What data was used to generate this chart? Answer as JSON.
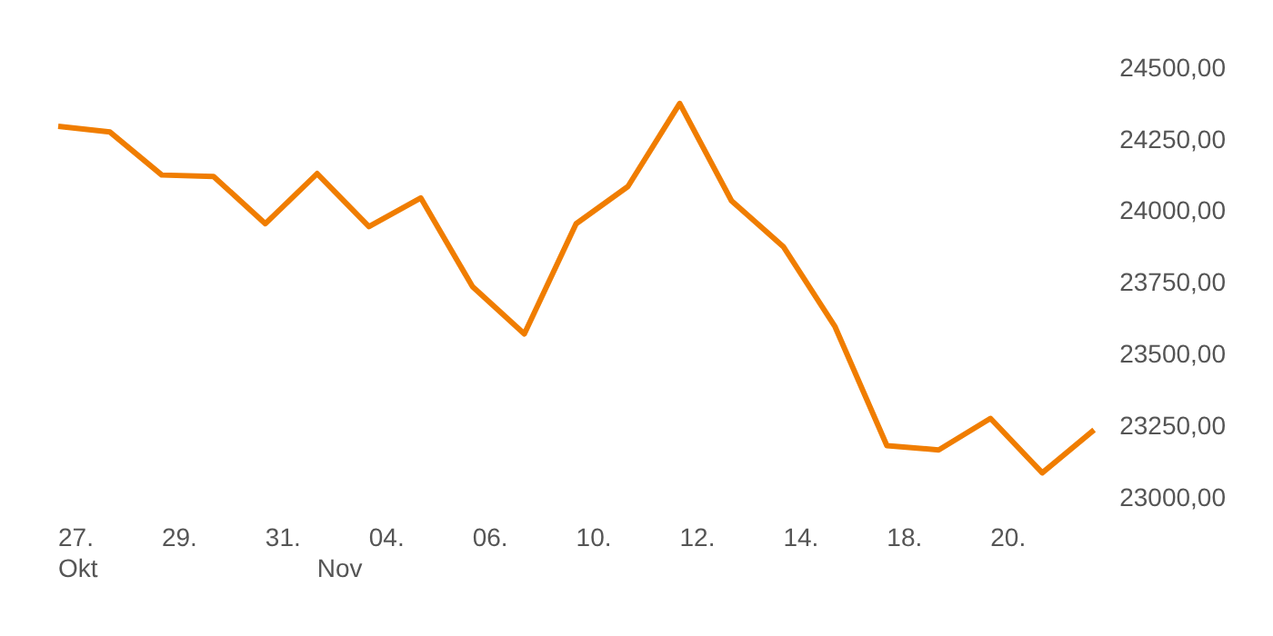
{
  "chart_data": {
    "type": "line",
    "categories": [
      "27.\nOkt",
      null,
      "29.",
      null,
      "31.",
      "\nNov",
      "04.",
      null,
      "06.",
      null,
      "10.",
      null,
      "12.",
      null,
      "14.",
      null,
      "18.",
      null,
      "20.",
      null,
      null
    ],
    "series": [
      {
        "color": "#f07d00",
        "values": [
          24300,
          24280,
          24130,
          24125,
          23960,
          24135,
          23950,
          24050,
          23740,
          23575,
          23960,
          24090,
          24380,
          24040,
          23880,
          23600,
          23185,
          23170,
          23280,
          23090,
          23240
        ]
      }
    ],
    "ylim": [
      23000,
      24500
    ],
    "yticks": [
      {
        "value": 23000,
        "label": "23000,00"
      },
      {
        "value": 23250,
        "label": "23250,00"
      },
      {
        "value": 23500,
        "label": "23500,00"
      },
      {
        "value": 23750,
        "label": "23750,00"
      },
      {
        "value": 24000,
        "label": "24000,00"
      },
      {
        "value": 24250,
        "label": "24250,00"
      },
      {
        "value": 24500,
        "label": "24500,00"
      }
    ],
    "grid": false,
    "legend": false,
    "marker": "none",
    "line_style": "solid"
  }
}
